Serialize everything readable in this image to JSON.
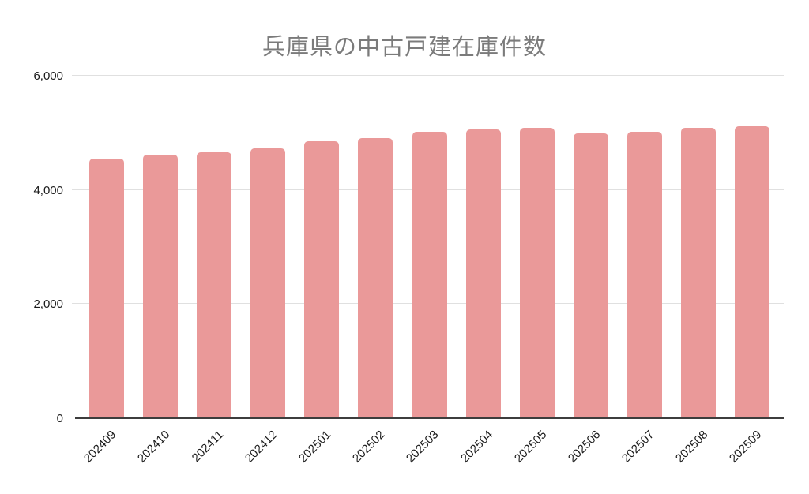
{
  "chart_data": {
    "type": "bar",
    "title": "兵庫県の中古戸建在庫件数",
    "categories": [
      "202409",
      "202410",
      "202411",
      "202412",
      "202501",
      "202502",
      "202503",
      "202504",
      "202505",
      "202506",
      "202507",
      "202508",
      "202509"
    ],
    "values": [
      4540,
      4610,
      4650,
      4710,
      4840,
      4900,
      5000,
      5040,
      5070,
      4980,
      5000,
      5070,
      5100
    ],
    "xlabel": "",
    "ylabel": "",
    "ylim": [
      0,
      6000
    ],
    "grid": true,
    "legend": "none",
    "y_axis": {
      "ticks": [
        {
          "value": 0,
          "label": "0"
        },
        {
          "value": 2000,
          "label": "2,000"
        },
        {
          "value": 4000,
          "label": "4,000"
        },
        {
          "value": 6000,
          "label": "6,000"
        }
      ]
    },
    "colors": {
      "bar_fill": "#ea9999",
      "title_text": "#7b7b7b",
      "axis_label_text": "#1a1a1a",
      "gridline": "#e0e0e0",
      "axis_line": "#3d3d3d",
      "background": "#ffffff"
    }
  }
}
